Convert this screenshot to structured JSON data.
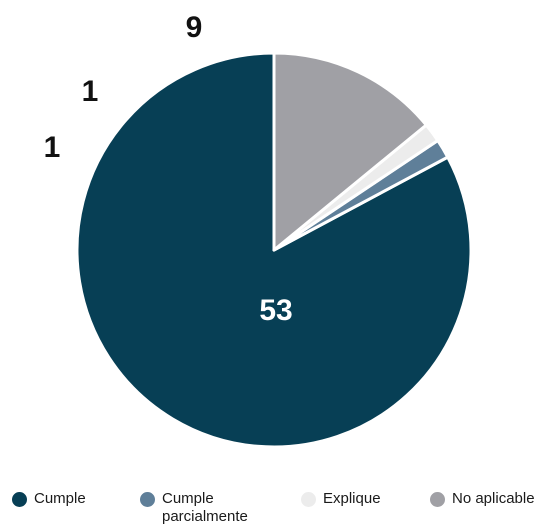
{
  "chart_data": {
    "type": "pie",
    "categories": [
      "Cumple",
      "Cumple parcialmente",
      "Explique",
      "No aplicable"
    ],
    "values": [
      53,
      1,
      1,
      9
    ],
    "data_labels": [
      "53",
      "1",
      "1",
      "9"
    ],
    "colors": [
      "#073f55",
      "#5f7f99",
      "#ececec",
      "#a0a0a5"
    ],
    "legend_position": "bottom",
    "start_angle": "12 o'clock",
    "direction": "counterclockwise"
  },
  "legend": {
    "items": [
      {
        "label": "Cumple",
        "color": "#073f55"
      },
      {
        "label": "Cumple parcialmente",
        "color": "#5f7f99"
      },
      {
        "label": "Explique",
        "color": "#ececec"
      },
      {
        "label": "No aplicable",
        "color": "#a0a0a5"
      }
    ]
  }
}
